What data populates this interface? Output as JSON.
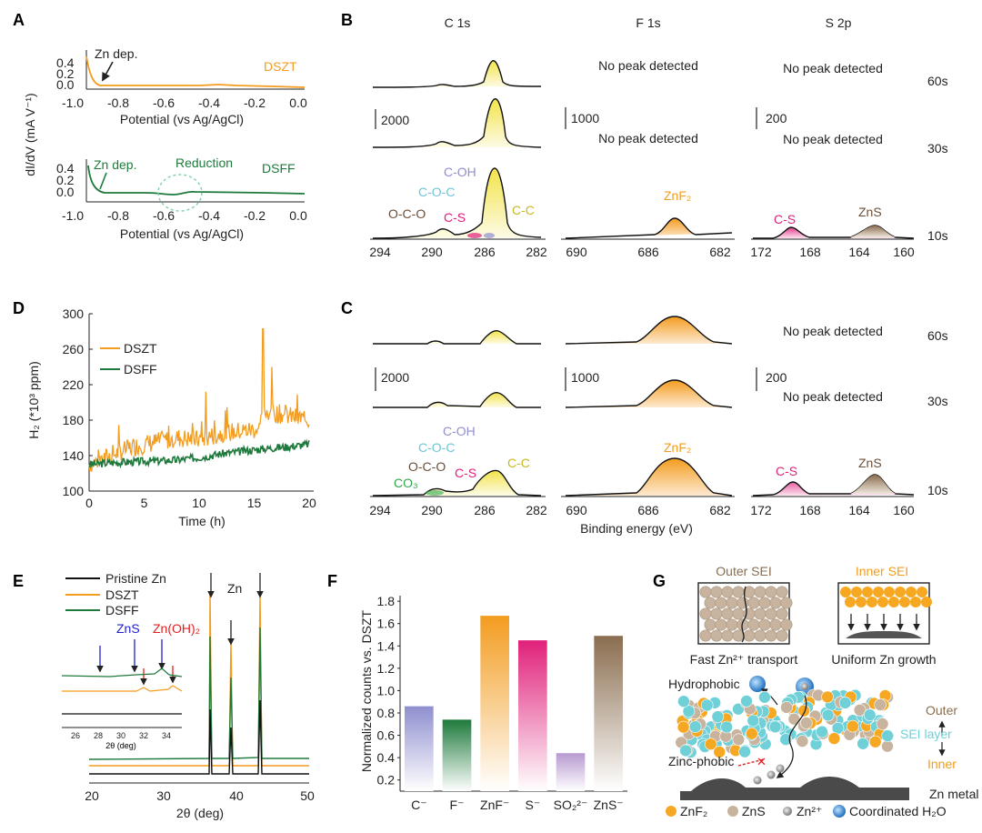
{
  "colors": {
    "dszt": "#f39c1f",
    "dsff": "#1e7a3c",
    "pristine": "#111111",
    "c1s_cc": "#f2e34a",
    "c_oh": "#8f8fd0",
    "c_oc": "#6fc4d8",
    "c_s": "#e0207a",
    "znf2": "#f39c1f",
    "zns": "#8a6d4f",
    "oco": "#6b4f3a",
    "co3": "#2ea84a",
    "zn_oh2": "#e02020",
    "zns_xrd": "#2020d0",
    "sei_cyan": "#6fd0d8",
    "znf2_ball": "#f7a823",
    "zns_ball": "#c8b49e",
    "water": "#2e86d6",
    "reduction": "#1e7a3c"
  },
  "panel_a": {
    "label": "A",
    "ylabel": "dI/dV (mA V⁻¹)",
    "xlabel": "Potential (vs Ag/AgCl)",
    "xticks": [
      "-1.0",
      "-0.8",
      "-0.6",
      "-0.4",
      "-0.2",
      "0.0"
    ],
    "yticks": [
      "0.0",
      "0.2",
      "0.4"
    ],
    "top": {
      "series": "DSZT",
      "annotation": "Zn dep."
    },
    "bottom": {
      "series": "DSFF",
      "annotation": "Zn dep.",
      "reduction": "Reduction"
    }
  },
  "panel_b": {
    "label": "B",
    "columns": [
      "C 1s",
      "F 1s",
      "S 2p"
    ],
    "times": [
      "60s",
      "30s",
      "10s"
    ],
    "scales": [
      "2000",
      "1000",
      "200"
    ],
    "no_peak": "No peak detected",
    "c1s_labels": {
      "coh": "C-OH",
      "coc": "C-O-C",
      "oco": "O-C-O",
      "cs": "C-S",
      "cc": "C-C"
    },
    "f1s_label": "ZnF₂",
    "s2p_labels": {
      "cs": "C-S",
      "zns": "ZnS"
    },
    "xticks_c": [
      "294",
      "290",
      "286",
      "282"
    ],
    "xticks_f": [
      "690",
      "686",
      "682"
    ],
    "xticks_s": [
      "172",
      "168",
      "164",
      "160"
    ]
  },
  "panel_c": {
    "label": "C",
    "times": [
      "60s",
      "30s",
      "10s"
    ],
    "scales": [
      "2000",
      "1000",
      "200"
    ],
    "no_peak": "No peak detected",
    "c1s_labels": {
      "coh": "C-OH",
      "coc": "C-O-C",
      "oco": "O-C-O",
      "cs": "C-S",
      "cc": "C-C",
      "co3": "CO₃"
    },
    "f1s_label": "ZnF₂",
    "s2p_labels": {
      "cs": "C-S",
      "zns": "ZnS"
    },
    "xlabel": "Binding energy (eV)",
    "xticks_c": [
      "294",
      "290",
      "286",
      "282"
    ],
    "xticks_f": [
      "690",
      "686",
      "682"
    ],
    "xticks_s": [
      "172",
      "168",
      "164",
      "160"
    ]
  },
  "panel_d": {
    "label": "D",
    "ylabel": "H₂ (*10³ ppm)",
    "xlabel": "Time (h)",
    "yticks": [
      "100",
      "140",
      "180",
      "220",
      "260",
      "300"
    ],
    "xticks": [
      "0",
      "5",
      "10",
      "15",
      "20"
    ],
    "legend": [
      "DSZT",
      "DSFF"
    ]
  },
  "panel_e": {
    "label": "E",
    "xlabel": "2θ (deg)",
    "xticks": [
      "20",
      "30",
      "40",
      "50"
    ],
    "legend": [
      "Pristine Zn",
      "DSZT",
      "DSFF"
    ],
    "zn_label": "Zn",
    "inset_labels": {
      "zns": "ZnS",
      "znoh": "Zn(OH)₂"
    },
    "inset_xlabel": "2θ (deg)",
    "inset_xticks": [
      "26",
      "28",
      "30",
      "32",
      "34"
    ]
  },
  "chart_data": [
    {
      "type": "bar",
      "title": "F",
      "ylabel": "Normalized counts vs. DSZT",
      "categories": [
        "C⁻",
        "F⁻",
        "ZnF⁻",
        "S⁻",
        "SO₂²⁻",
        "ZnS⁻"
      ],
      "values": [
        0.86,
        0.74,
        1.67,
        1.45,
        0.44,
        1.49
      ],
      "yticks": [
        "0.2",
        "0.4",
        "0.6",
        "0.8",
        "1.0",
        "1.2",
        "1.4",
        "1.6",
        "1.8"
      ],
      "ylim": [
        0.1,
        1.85
      ],
      "colors": [
        "#8f8fd0",
        "#1e7a3c",
        "#f39c1f",
        "#e0207a",
        "#b79ad0",
        "#8a6d4f"
      ]
    },
    {
      "type": "line",
      "title": "D",
      "xlabel": "Time (h)",
      "ylabel": "H₂ (*10³ ppm)",
      "xlim": [
        0,
        20
      ],
      "ylim": [
        100,
        300
      ],
      "series": [
        {
          "name": "DSZT",
          "x": [
            0,
            2,
            4,
            6,
            8,
            10,
            12,
            14,
            15.5,
            16,
            18,
            20
          ],
          "values": [
            130,
            140,
            150,
            155,
            160,
            158,
            165,
            168,
            170,
            190,
            185,
            180
          ]
        },
        {
          "name": "DSFF",
          "x": [
            0,
            2,
            4,
            6,
            8,
            10,
            12,
            14,
            16,
            18,
            20
          ],
          "values": [
            130,
            132,
            133,
            134,
            135,
            138,
            142,
            145,
            148,
            150,
            153
          ]
        }
      ]
    }
  ],
  "panel_f": {
    "label": "F"
  },
  "panel_g": {
    "label": "G",
    "outer_sei": "Outer SEI",
    "inner_sei": "Inner SEI",
    "fast_transport": "Fast Zn²⁺ transport",
    "uniform_growth": "Uniform Zn growth",
    "hydrophobic": "Hydrophobic",
    "zincphobic": "Zinc-phobic",
    "outer": "Outer",
    "inner": "Inner",
    "sei_layer": "SEI layer",
    "zn_metal": "Zn metal",
    "legend": [
      "ZnF₂",
      "ZnS",
      "Zn²⁺",
      "Coordinated H₂O"
    ]
  }
}
